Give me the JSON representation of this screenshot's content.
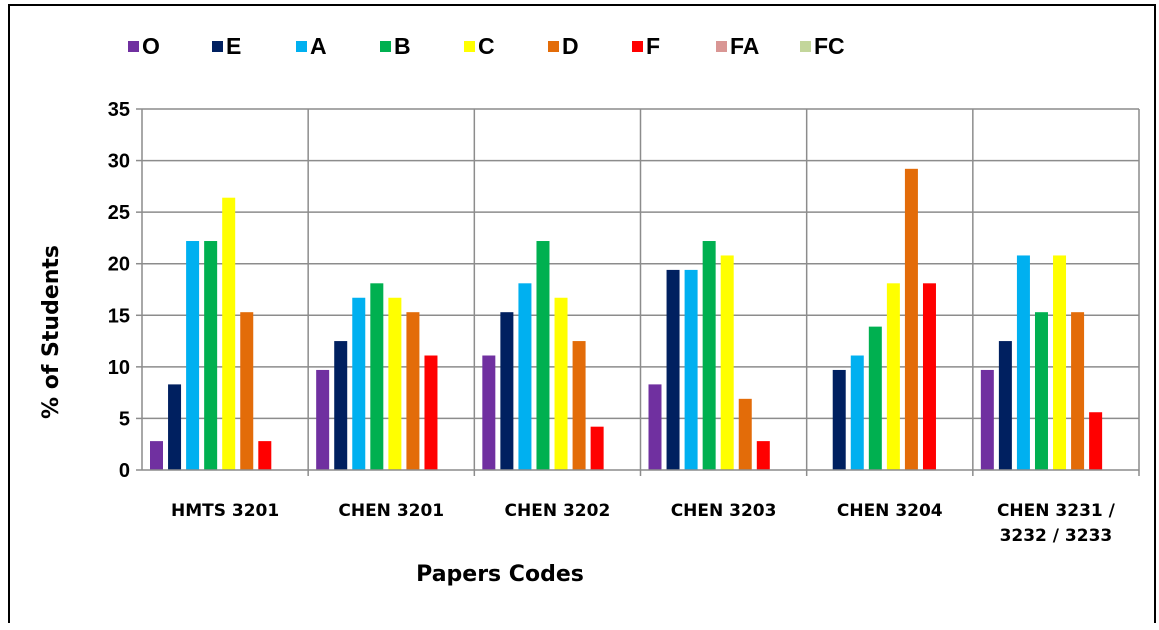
{
  "chart_data": {
    "type": "bar",
    "title": "",
    "xlabel": "Papers Codes",
    "ylabel": "% of Students",
    "ylim": [
      0,
      35
    ],
    "yticks": [
      0,
      5,
      10,
      15,
      20,
      25,
      30,
      35
    ],
    "grid": true,
    "legend_position": "top",
    "categories": [
      [
        "HMTS 3201"
      ],
      [
        "CHEN 3201"
      ],
      [
        "CHEN 3202"
      ],
      [
        "CHEN 3203"
      ],
      [
        "CHEN 3204"
      ],
      [
        "CHEN 3231 /",
        "3232 / 3233"
      ]
    ],
    "series": [
      {
        "name": "O",
        "color": "#7030a0",
        "values": [
          2.8,
          9.7,
          11.1,
          8.3,
          0,
          9.7
        ]
      },
      {
        "name": "E",
        "color": "#002060",
        "values": [
          8.3,
          12.5,
          15.3,
          19.4,
          9.7,
          12.5
        ]
      },
      {
        "name": "A",
        "color": "#00b0f0",
        "values": [
          22.2,
          16.7,
          18.1,
          19.4,
          11.1,
          20.8
        ]
      },
      {
        "name": "B",
        "color": "#00b050",
        "values": [
          22.2,
          18.1,
          22.2,
          22.2,
          13.9,
          15.3
        ]
      },
      {
        "name": "C",
        "color": "#ffff00",
        "values": [
          26.4,
          16.7,
          16.7,
          20.8,
          18.1,
          20.8
        ]
      },
      {
        "name": "D",
        "color": "#e36c09",
        "values": [
          15.3,
          15.3,
          12.5,
          6.9,
          29.2,
          15.3
        ]
      },
      {
        "name": "F",
        "color": "#ff0000",
        "values": [
          2.8,
          11.1,
          4.2,
          2.8,
          18.1,
          5.6
        ]
      },
      {
        "name": "FA",
        "color": "#d99694",
        "values": [
          0,
          0,
          0,
          0,
          0,
          0
        ]
      },
      {
        "name": "FC",
        "color": "#c3d69b",
        "values": [
          0,
          0,
          0,
          0,
          0,
          0
        ]
      }
    ]
  }
}
